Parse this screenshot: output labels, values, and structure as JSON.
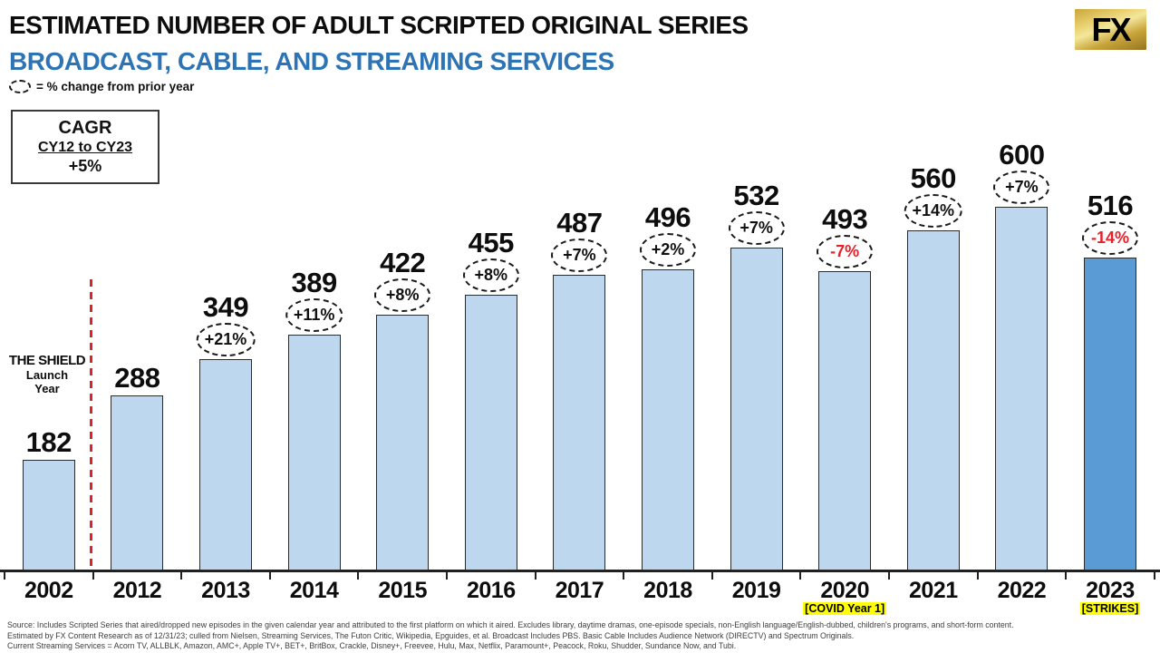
{
  "header": {
    "title": "ESTIMATED NUMBER OF ADULT SCRIPTED ORIGINAL SERIES",
    "subtitle": "BROADCAST, CABLE, AND STREAMING SERVICES",
    "legend_text": "= % change from prior year",
    "logo_text": "FX"
  },
  "cagr_box": {
    "label": "CAGR",
    "range": "CY12 to CY23",
    "value": "+5%"
  },
  "shield_callout": {
    "line1": "THE SHIELD",
    "line2": "Launch",
    "line3": "Year"
  },
  "chart_data": {
    "type": "bar",
    "title": "Estimated Number of Adult Scripted Original Series - Broadcast, Cable, and Streaming Services",
    "categories": [
      "2002",
      "2012",
      "2013",
      "2014",
      "2015",
      "2016",
      "2017",
      "2018",
      "2019",
      "2020",
      "2021",
      "2022",
      "2023"
    ],
    "values": [
      182,
      288,
      349,
      389,
      422,
      455,
      487,
      496,
      532,
      493,
      560,
      600,
      516
    ],
    "pct_change": [
      "",
      "",
      "+21%",
      "+11%",
      "+8%",
      "+8%",
      "+7%",
      "+2%",
      "+7%",
      "-7%",
      "+14%",
      "+7%",
      "-14%"
    ],
    "annotations": [
      {
        "category": "2020",
        "label": "[COVID Year 1]"
      },
      {
        "category": "2023",
        "label": "[STRIKES]"
      }
    ],
    "ylim": [
      0,
      600
    ],
    "grid": false,
    "legend_position": "top-left",
    "colors": {
      "bar_fill": "#bdd7ee",
      "bar_fill_final": "#5b9bd5",
      "bar_border": "#2b2b2b",
      "negative_pct": "#e8202a",
      "positive_pct": "#111111",
      "highlight": "#ffff00",
      "divider_red": "#e02128",
      "subtitle_blue": "#2e74b5",
      "logo_gold": "#d9a820"
    }
  },
  "footer": {
    "lines": [
      "Source:  Includes Scripted Series that aired/dropped new episodes in the given calendar year and attributed to the first platform on which it aired. Excludes library, daytime dramas, one-episode specials, non-English language/English-dubbed, children's programs, and short-form content.",
      "Estimated by FX Content Research as of 12/31/23; culled from Nielsen, Streaming Services, The Futon Critic, Wikipedia, Epguides, et al.  Broadcast Includes PBS.  Basic Cable Includes Audience Network (DIRECTV) and Spectrum Originals.",
      "Current Streaming Services = Acorn TV, ALLBLK, Amazon, AMC+, Apple TV+, BET+, BritBox, Crackle, Disney+, Freevee, Hulu, Max, Netflix, Paramount+, Peacock, Roku, Shudder, Sundance Now, and Tubi."
    ]
  }
}
